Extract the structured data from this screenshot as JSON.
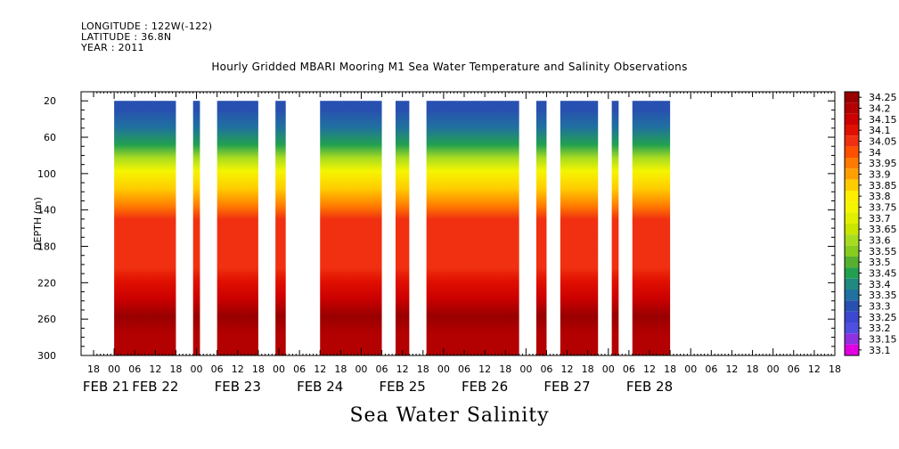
{
  "header": {
    "longitude": "LONGITUDE : 122W(-122)",
    "latitude": "LATITUDE : 36.8N",
    "year": "YEAR : 2011"
  },
  "chart_data": {
    "type": "heatmap",
    "title": "Hourly Gridded MBARI Mooring M1 Sea Water Temperature and Salinity Observations",
    "variable_title": "Sea Water Salinity",
    "ylabel": "DEPTH (m)",
    "ylim": [
      300,
      10
    ],
    "y_ticks": [
      20,
      60,
      100,
      140,
      180,
      220,
      260,
      300
    ],
    "x_start_hour_label": "18",
    "x_hour_labels": [
      "18",
      "00",
      "06",
      "12",
      "18",
      "00",
      "06",
      "12",
      "18",
      "00",
      "06",
      "12",
      "18",
      "00",
      "06",
      "12",
      "18",
      "00",
      "06",
      "12",
      "18",
      "00",
      "06",
      "12",
      "18",
      "00",
      "06",
      "12",
      "18",
      "00",
      "06",
      "12",
      "18",
      "00",
      "06",
      "12",
      "18"
    ],
    "date_labels": [
      {
        "label": "FEB 21",
        "hours_from_start": 0
      },
      {
        "label": "FEB 22",
        "hours_from_start": 18
      },
      {
        "label": "FEB 23",
        "hours_from_start": 42
      },
      {
        "label": "FEB 24",
        "hours_from_start": 66
      },
      {
        "label": "FEB 25",
        "hours_from_start": 90
      },
      {
        "label": "FEB 26",
        "hours_from_start": 114
      },
      {
        "label": "FEB 27",
        "hours_from_start": 138
      },
      {
        "label": "FEB 28",
        "hours_from_start": 162
      }
    ],
    "data_segments_hours": [
      [
        6,
        24
      ],
      [
        29,
        31
      ],
      [
        36,
        48
      ],
      [
        53,
        56
      ],
      [
        66,
        84
      ],
      [
        88,
        92
      ],
      [
        97,
        124
      ],
      [
        129,
        132
      ],
      [
        136,
        147
      ],
      [
        151,
        153
      ],
      [
        157,
        168
      ]
    ],
    "colorbar_levels": [
      "34.25",
      "34.2",
      "34.15",
      "34.1",
      "34.05",
      "34",
      "33.95",
      "33.9",
      "33.85",
      "33.8",
      "33.75",
      "33.7",
      "33.65",
      "33.6",
      "33.55",
      "33.5",
      "33.45",
      "33.4",
      "33.35",
      "33.3",
      "33.25",
      "33.2",
      "33.15",
      "33.1"
    ],
    "colorbar_colors": [
      "#990000",
      "#b30000",
      "#cc0000",
      "#e01000",
      "#f03010",
      "#ff5000",
      "#ff7a00",
      "#ffa000",
      "#ffcc00",
      "#ffee00",
      "#f5f500",
      "#e0f000",
      "#c8e600",
      "#a8dc20",
      "#88cc20",
      "#55b030",
      "#22a050",
      "#208a80",
      "#2070a0",
      "#2850b0",
      "#3c48d0",
      "#5050e0",
      "#9030e0",
      "#e000e0"
    ],
    "depth_profile": [
      {
        "depth": 20,
        "value": 33.3
      },
      {
        "depth": 40,
        "value": 33.35
      },
      {
        "depth": 60,
        "value": 33.45
      },
      {
        "depth": 75,
        "value": 33.6
      },
      {
        "depth": 90,
        "value": 33.75
      },
      {
        "depth": 110,
        "value": 33.85
      },
      {
        "depth": 130,
        "value": 33.95
      },
      {
        "depth": 145,
        "value": 34.05
      },
      {
        "depth": 200,
        "value": 34.05
      },
      {
        "depth": 215,
        "value": 34.1
      },
      {
        "depth": 235,
        "value": 34.15
      },
      {
        "depth": 255,
        "value": 34.25
      },
      {
        "depth": 275,
        "value": 34.2
      },
      {
        "depth": 300,
        "value": 34.2
      }
    ]
  }
}
